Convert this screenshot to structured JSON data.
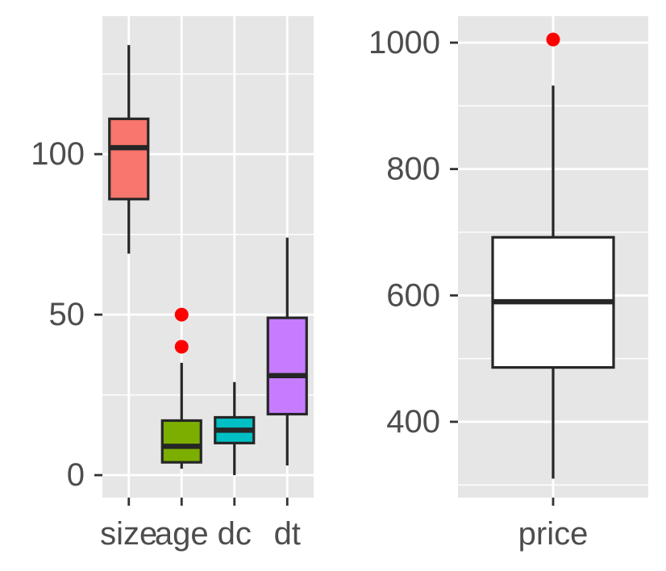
{
  "chart_data": [
    {
      "type": "boxplot",
      "title": "",
      "xlabel": "",
      "ylabel": "",
      "ylim": [
        -7,
        143
      ],
      "yticks": [
        0,
        50,
        100
      ],
      "categories": [
        "size",
        "age",
        "dc",
        "dt"
      ],
      "boxes": [
        {
          "category": "size",
          "min": 69,
          "q1": 86,
          "median": 102,
          "q3": 111,
          "max": 134,
          "outliers": [],
          "fill": "#F8766D"
        },
        {
          "category": "age",
          "min": 2,
          "q1": 4,
          "median": 9,
          "q3": 17,
          "max": 35,
          "outliers": [
            40,
            50
          ],
          "fill": "#7CAE00"
        },
        {
          "category": "dc",
          "min": 0,
          "q1": 10,
          "median": 14,
          "q3": 18,
          "max": 29,
          "outliers": [],
          "fill": "#00BFC4"
        },
        {
          "category": "dt",
          "min": 3,
          "q1": 19,
          "median": 31,
          "q3": 49,
          "max": 74,
          "outliers": [],
          "fill": "#C77CFF"
        }
      ],
      "grid": true,
      "legend": "none",
      "outlier_color": "#FF0000",
      "panel_background": "#E6E6E6",
      "grid_color": "#FFFFFF"
    },
    {
      "type": "boxplot",
      "title": "",
      "xlabel": "",
      "ylabel": "",
      "ylim": [
        280,
        1042
      ],
      "yticks": [
        400,
        600,
        800,
        1000
      ],
      "categories": [
        "price"
      ],
      "boxes": [
        {
          "category": "price",
          "min": 310,
          "q1": 486,
          "median": 590,
          "q3": 692,
          "max": 932,
          "outliers": [
            1005
          ],
          "fill": "#FFFFFF"
        }
      ],
      "grid": true,
      "legend": "none",
      "outlier_color": "#FF0000",
      "panel_background": "#E6E6E6",
      "grid_color": "#FFFFFF"
    }
  ]
}
